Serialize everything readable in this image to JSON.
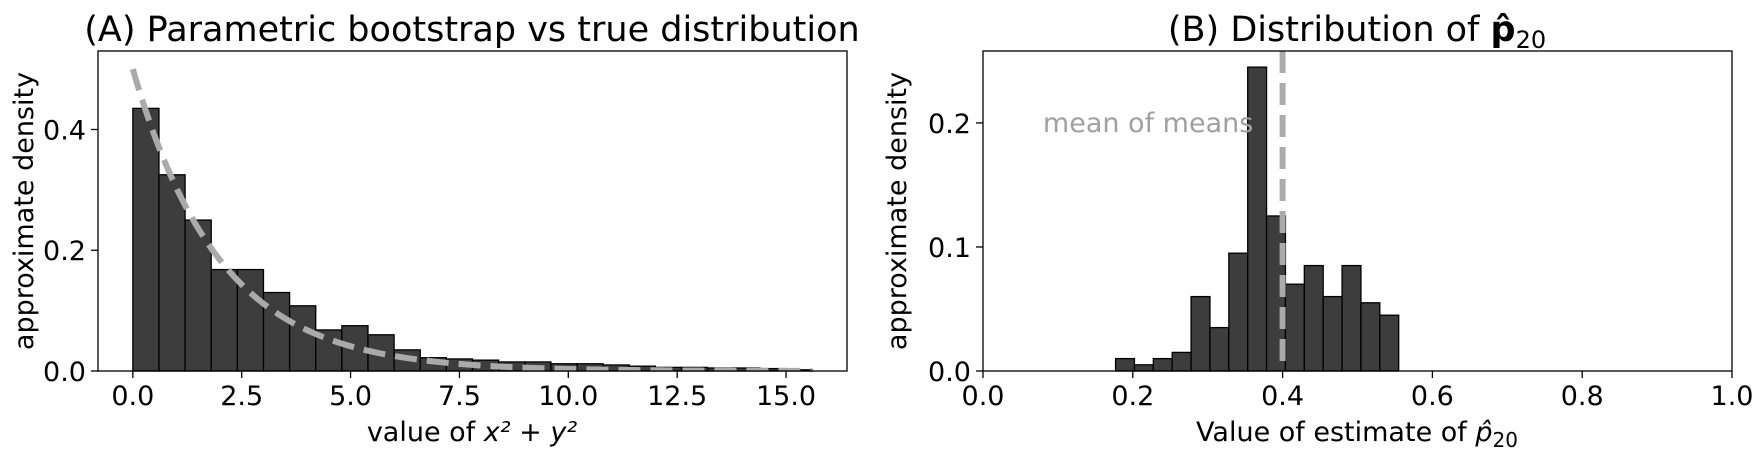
{
  "chart_data": [
    {
      "type": "bar",
      "title_prefix": "(A) Parametric bootstrap vs true distribution",
      "xlabel_prefix": "value of ",
      "xlabel_math": "x² + y²",
      "ylabel": "approximate density",
      "xlim": [
        -0.8,
        16.4
      ],
      "ylim": [
        0,
        0.53
      ],
      "xticks": [
        0.0,
        2.5,
        5.0,
        7.5,
        10.0,
        12.5,
        15.0
      ],
      "xtick_labels": [
        "0.0",
        "2.5",
        "5.0",
        "7.5",
        "10.0",
        "12.5",
        "15.0"
      ],
      "yticks": [
        0.0,
        0.2,
        0.4
      ],
      "ytick_labels": [
        "0.0",
        "0.2",
        "0.4"
      ],
      "bin_start": 0.0,
      "bin_width": 0.6,
      "bar_values": [
        0.435,
        0.325,
        0.25,
        0.168,
        0.168,
        0.13,
        0.108,
        0.068,
        0.075,
        0.06,
        0.035,
        0.022,
        0.02,
        0.018,
        0.015,
        0.015,
        0.012,
        0.012,
        0.01,
        0.008,
        0.006,
        0.006,
        0.005,
        0.005,
        0.004,
        0.002
      ],
      "bar_color": "#3d3d3d",
      "edge_color": "#000000",
      "true_density": {
        "form": "0.5*exp(-x/2)",
        "x_range": [
          0,
          15.6
        ],
        "color": "#aaaaaa",
        "style": "dashed"
      }
    },
    {
      "type": "bar",
      "title_prefix": "(B) Distribution of ",
      "title_math": "p̂",
      "title_sub": "20",
      "xlabel_prefix": "Value of estimate of ",
      "xlabel_math": "p̂",
      "xlabel_sub": "20",
      "ylabel": "approximate density",
      "xlim": [
        0.0,
        1.0
      ],
      "ylim": [
        0,
        0.258
      ],
      "xticks": [
        0.0,
        0.2,
        0.4,
        0.6,
        0.8,
        1.0
      ],
      "xtick_labels": [
        "0.0",
        "0.2",
        "0.4",
        "0.6",
        "0.8",
        "1.0"
      ],
      "yticks": [
        0.0,
        0.1,
        0.2
      ],
      "ytick_labels": [
        "0.0",
        "0.1",
        "0.2"
      ],
      "bin_start": 0.177,
      "bin_width": 0.0252,
      "bar_values": [
        0.01,
        0.005,
        0.01,
        0.015,
        0.06,
        0.035,
        0.095,
        0.245,
        0.125,
        0.07,
        0.085,
        0.06,
        0.085,
        0.055,
        0.045
      ],
      "bar_color": "#3d3d3d",
      "edge_color": "#000000",
      "mean_line": {
        "x": 0.4,
        "color": "#aaaaaa",
        "style": "dashed"
      },
      "annotation": {
        "text": "mean of means",
        "x": 0.08,
        "y": 0.2
      }
    }
  ]
}
